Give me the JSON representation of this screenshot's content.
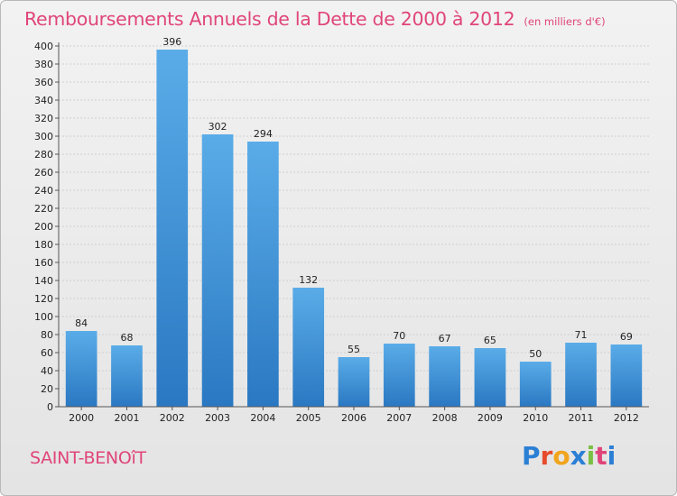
{
  "title": "Remboursements Annuels de la Dette de 2000 à 2012",
  "unit_note": "(en milliers d'€)",
  "commune": "SAINT-BENOîT",
  "logo_letters": [
    "P",
    "r",
    "o",
    "x",
    "i",
    "t",
    "i"
  ],
  "colors": {
    "title": "#e0457a",
    "bar_top": "#5aace8",
    "bar_bottom": "#2a78c2"
  },
  "chart_data": {
    "type": "bar",
    "title": "Remboursements Annuels de la Dette de 2000 à 2012",
    "categories": [
      "2000",
      "2001",
      "2002",
      "2003",
      "2004",
      "2005",
      "2006",
      "2007",
      "2008",
      "2009",
      "2010",
      "2011",
      "2012"
    ],
    "values": [
      84,
      68,
      396,
      302,
      294,
      132,
      55,
      70,
      67,
      65,
      50,
      71,
      69
    ],
    "ylim": [
      0,
      400
    ],
    "yticks": [
      0,
      20,
      40,
      60,
      80,
      100,
      120,
      140,
      160,
      180,
      200,
      220,
      240,
      260,
      280,
      300,
      320,
      340,
      360,
      380,
      400
    ],
    "grid": true
  }
}
